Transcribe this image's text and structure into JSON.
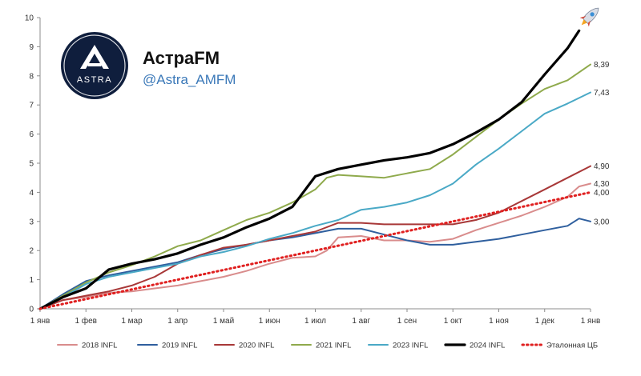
{
  "brand": {
    "name": "АстраFM",
    "handle": "@Astra_AMFM",
    "logo_text": "ASTRA",
    "logo_icon": "astra-triangle-logo",
    "emoji_icon": "rocket-icon"
  },
  "chart_data": {
    "type": "line",
    "title": "",
    "xlabel": "",
    "ylabel": "",
    "ylim": [
      0,
      10
    ],
    "yticks": [
      "0",
      "1",
      "2",
      "3",
      "4",
      "5",
      "6",
      "7",
      "8",
      "9",
      "10"
    ],
    "xlim": [
      0,
      12
    ],
    "xticks": [
      "1 янв",
      "1 фев",
      "1 мар",
      "1 апр",
      "1 май",
      "1 июн",
      "1 июл",
      "1 авг",
      "1 сен",
      "1 окт",
      "1 ноя",
      "1 дек",
      "1 янв"
    ],
    "grid": false,
    "legend_position": "bottom",
    "series": [
      {
        "name": "2018 INFL",
        "color": "#d98c8c",
        "width": 2,
        "dash": "",
        "x": [
          0,
          0.5,
          1,
          1.5,
          2,
          2.5,
          3,
          3.5,
          4,
          4.5,
          5,
          5.5,
          6,
          6.25,
          6.5,
          7,
          7.5,
          8,
          8.5,
          9,
          9.5,
          10,
          10.5,
          11,
          11.5,
          11.75,
          12
        ],
        "y": [
          0,
          0.3,
          0.4,
          0.55,
          0.6,
          0.7,
          0.8,
          0.95,
          1.1,
          1.3,
          1.55,
          1.75,
          1.8,
          2.0,
          2.45,
          2.5,
          2.35,
          2.35,
          2.3,
          2.4,
          2.7,
          2.95,
          3.2,
          3.5,
          3.85,
          4.2,
          4.3
        ]
      },
      {
        "name": "2019 INFL",
        "color": "#2f5f9e",
        "width": 2,
        "dash": "",
        "x": [
          0,
          0.5,
          1,
          1.5,
          2,
          2.5,
          3,
          3.5,
          4,
          4.5,
          5,
          5.5,
          6,
          6.5,
          7,
          7.5,
          8,
          8.5,
          9,
          9.5,
          10,
          10.5,
          11,
          11.5,
          11.75,
          12
        ],
        "y": [
          0,
          0.5,
          0.95,
          1.15,
          1.3,
          1.45,
          1.6,
          1.85,
          2.05,
          2.2,
          2.35,
          2.45,
          2.6,
          2.75,
          2.75,
          2.55,
          2.35,
          2.2,
          2.2,
          2.3,
          2.4,
          2.55,
          2.7,
          2.85,
          3.1,
          3.0
        ]
      },
      {
        "name": "2020 INFL",
        "color": "#a83838",
        "width": 2,
        "dash": "",
        "x": [
          0,
          0.5,
          1,
          1.5,
          2,
          2.5,
          3,
          3.5,
          4,
          4.5,
          5,
          5.5,
          6,
          6.5,
          7,
          7.5,
          8,
          8.5,
          9,
          9.5,
          10,
          10.5,
          11,
          11.5,
          12
        ],
        "y": [
          0,
          0.3,
          0.45,
          0.6,
          0.8,
          1.1,
          1.55,
          1.85,
          2.1,
          2.2,
          2.35,
          2.5,
          2.65,
          2.95,
          2.95,
          2.9,
          2.9,
          2.9,
          2.9,
          3.05,
          3.3,
          3.7,
          4.1,
          4.5,
          4.9
        ]
      },
      {
        "name": "2021 INFL",
        "color": "#8faa4c",
        "width": 2,
        "dash": "",
        "x": [
          0,
          0.5,
          1,
          1.5,
          2,
          2.5,
          3,
          3.5,
          4,
          4.5,
          5,
          5.5,
          6,
          6.25,
          6.5,
          7,
          7.5,
          8,
          8.5,
          9,
          9.5,
          10,
          10.5,
          11,
          11.5,
          12
        ],
        "y": [
          0,
          0.45,
          0.9,
          1.25,
          1.5,
          1.8,
          2.15,
          2.35,
          2.7,
          3.05,
          3.3,
          3.65,
          4.1,
          4.5,
          4.6,
          4.55,
          4.5,
          4.65,
          4.8,
          5.3,
          5.9,
          6.5,
          7.05,
          7.55,
          7.85,
          8.39
        ]
      },
      {
        "name": "2023 INFL",
        "color": "#4aa9c6",
        "width": 2,
        "dash": "",
        "x": [
          0,
          0.5,
          1,
          1.5,
          2,
          2.5,
          3,
          3.5,
          4,
          4.5,
          5,
          5.5,
          6,
          6.5,
          7,
          7.5,
          8,
          8.5,
          9,
          9.5,
          10,
          10.5,
          11,
          11.5,
          12
        ],
        "y": [
          0,
          0.4,
          0.85,
          1.1,
          1.25,
          1.4,
          1.55,
          1.8,
          1.95,
          2.15,
          2.4,
          2.6,
          2.85,
          3.05,
          3.4,
          3.5,
          3.65,
          3.9,
          4.3,
          4.95,
          5.5,
          6.1,
          6.7,
          7.05,
          7.43
        ]
      },
      {
        "name": "2024 INFL",
        "color": "#000000",
        "width": 3.2,
        "dash": "",
        "x": [
          0,
          0.5,
          1,
          1.5,
          2,
          2.5,
          3,
          3.5,
          4,
          4.5,
          5,
          5.5,
          6,
          6.5,
          7,
          7.5,
          8,
          8.5,
          9,
          9.5,
          10,
          10.5,
          11,
          11.5,
          11.75
        ],
        "y": [
          0,
          0.4,
          0.7,
          1.35,
          1.55,
          1.7,
          1.9,
          2.2,
          2.45,
          2.8,
          3.1,
          3.5,
          4.55,
          4.8,
          4.95,
          5.1,
          5.2,
          5.35,
          5.65,
          6.05,
          6.5,
          7.1,
          8.05,
          8.95,
          9.55
        ]
      },
      {
        "name": "Эталонная ЦБ",
        "color": "#e02020",
        "width": 3,
        "dash": "1.5 4",
        "x": [
          0,
          12
        ],
        "y": [
          0,
          4.0
        ]
      }
    ],
    "end_labels": [
      {
        "text": "8,39",
        "value": 8.39
      },
      {
        "text": "7,43",
        "value": 7.43
      },
      {
        "text": "4,90",
        "value": 4.9
      },
      {
        "text": "4,30",
        "value": 4.3
      },
      {
        "text": "4,00",
        "value": 4.0
      },
      {
        "text": "3,00",
        "value": 3.0
      }
    ]
  }
}
